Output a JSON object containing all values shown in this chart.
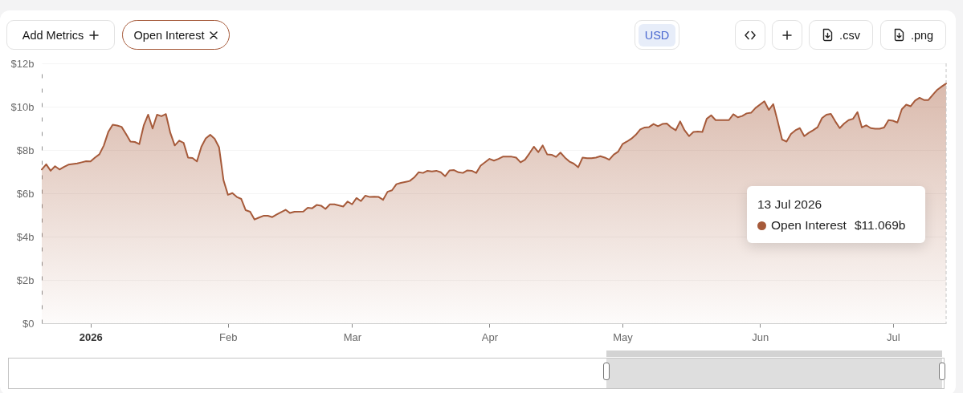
{
  "chart_data": {
    "type": "area",
    "x": [
      "2025-12-21",
      "2025-12-22",
      "2025-12-23",
      "2025-12-24",
      "2025-12-25",
      "2025-12-26",
      "2025-12-27",
      "2025-12-29",
      "2025-12-30",
      "2025-12-31",
      "2026-01-01",
      "2026-01-02",
      "2026-01-03",
      "2026-01-04",
      "2026-01-05",
      "2026-01-06",
      "2026-01-07",
      "2026-01-08",
      "2026-01-09",
      "2026-01-10",
      "2026-01-11",
      "2026-01-12",
      "2026-01-13",
      "2026-01-14",
      "2026-01-15",
      "2026-01-16",
      "2026-01-17",
      "2026-01-18",
      "2026-01-19",
      "2026-01-20",
      "2026-01-21",
      "2026-01-22",
      "2026-01-23",
      "2026-01-24",
      "2026-01-25",
      "2026-01-26",
      "2026-01-27",
      "2026-01-28",
      "2026-01-29",
      "2026-01-30",
      "2026-01-31",
      "2026-02-01",
      "2026-02-02",
      "2026-02-03",
      "2026-02-04",
      "2026-02-05",
      "2026-02-06",
      "2026-02-07",
      "2026-02-08",
      "2026-02-09",
      "2026-02-10",
      "2026-02-11",
      "2026-02-12",
      "2026-02-14",
      "2026-02-15",
      "2026-02-16",
      "2026-02-18",
      "2026-02-19",
      "2026-02-20",
      "2026-02-21",
      "2026-02-22",
      "2026-02-23",
      "2026-02-24",
      "2026-02-25",
      "2026-02-27",
      "2026-02-28",
      "2026-03-01",
      "2026-03-02",
      "2026-03-03",
      "2026-03-04",
      "2026-03-05",
      "2026-03-06",
      "2026-03-07",
      "2026-03-08",
      "2026-03-09",
      "2026-03-10",
      "2026-03-11",
      "2026-03-12",
      "2026-03-14",
      "2026-03-15",
      "2026-03-16",
      "2026-03-17",
      "2026-03-18",
      "2026-03-19",
      "2026-03-20",
      "2026-03-21",
      "2026-03-22",
      "2026-03-23",
      "2026-03-24",
      "2026-03-25",
      "2026-03-26",
      "2026-03-27",
      "2026-03-28",
      "2026-03-29",
      "2026-03-30",
      "2026-04-01",
      "2026-04-02",
      "2026-04-03",
      "2026-04-04",
      "2026-04-06",
      "2026-04-07",
      "2026-04-08",
      "2026-04-09",
      "2026-04-10",
      "2026-04-11",
      "2026-04-12",
      "2026-04-13",
      "2026-04-14",
      "2026-04-15",
      "2026-04-16",
      "2026-04-17",
      "2026-04-18",
      "2026-04-19",
      "2026-04-20",
      "2026-04-21",
      "2026-04-22",
      "2026-04-23",
      "2026-04-24",
      "2026-04-25",
      "2026-04-26",
      "2026-04-27",
      "2026-04-28",
      "2026-04-29",
      "2026-04-30",
      "2026-05-01",
      "2026-05-02",
      "2026-05-03",
      "2026-05-04",
      "2026-05-05",
      "2026-05-06",
      "2026-05-07",
      "2026-05-08",
      "2026-05-09",
      "2026-05-10",
      "2026-05-11",
      "2026-05-12",
      "2026-05-13",
      "2026-05-14",
      "2026-05-15",
      "2026-05-16",
      "2026-05-17",
      "2026-05-18",
      "2026-05-19",
      "2026-05-20",
      "2026-05-21",
      "2026-05-22",
      "2026-05-23",
      "2026-05-24",
      "2026-05-25",
      "2026-05-26",
      "2026-05-27",
      "2026-05-28",
      "2026-05-29",
      "2026-05-30",
      "2026-05-31",
      "2026-06-02",
      "2026-06-03",
      "2026-06-04",
      "2026-06-05",
      "2026-06-06",
      "2026-06-07",
      "2026-06-08",
      "2026-06-09",
      "2026-06-10",
      "2026-06-11",
      "2026-06-12",
      "2026-06-13",
      "2026-06-14",
      "2026-06-15",
      "2026-06-16",
      "2026-06-17",
      "2026-06-18",
      "2026-06-19",
      "2026-06-20",
      "2026-06-21",
      "2026-06-22",
      "2026-06-23",
      "2026-06-24",
      "2026-06-25",
      "2026-06-26",
      "2026-06-27",
      "2026-06-28",
      "2026-06-29",
      "2026-06-30",
      "2026-07-01",
      "2026-07-02",
      "2026-07-03",
      "2026-07-04",
      "2026-07-05",
      "2026-07-06",
      "2026-07-07",
      "2026-07-08",
      "2026-07-09",
      "2026-07-10",
      "2026-07-11",
      "2026-07-12",
      "2026-07-13"
    ],
    "series": [
      {
        "name": "Open Interest",
        "color": "#a65a3a",
        "values": [
          7.1,
          7.34,
          7.04,
          7.25,
          7.1,
          7.22,
          7.32,
          7.38,
          7.43,
          7.48,
          7.47,
          7.65,
          7.8,
          8.21,
          8.83,
          9.17,
          9.13,
          9.07,
          8.74,
          8.39,
          8.37,
          8.27,
          9.13,
          9.63,
          8.99,
          9.63,
          9.56,
          9.66,
          8.79,
          8.21,
          8.43,
          8.33,
          7.65,
          7.63,
          7.47,
          8.15,
          8.54,
          8.7,
          8.52,
          8.12,
          6.6,
          5.93,
          6.01,
          5.83,
          5.74,
          5.22,
          5.15,
          4.79,
          4.88,
          4.96,
          4.96,
          4.9,
          5.02,
          5.24,
          5.09,
          5.15,
          5.16,
          5.33,
          5.31,
          5.46,
          5.43,
          5.28,
          5.49,
          5.49,
          5.39,
          5.62,
          5.49,
          5.78,
          5.64,
          5.89,
          5.83,
          5.84,
          5.83,
          5.7,
          6.07,
          6.14,
          6.42,
          6.48,
          6.57,
          6.73,
          6.97,
          6.94,
          7.04,
          7.01,
          7.04,
          6.97,
          6.79,
          7.06,
          7.07,
          6.97,
          6.94,
          7.06,
          7.04,
          6.94,
          7.28,
          7.59,
          7.51,
          7.59,
          7.69,
          7.69,
          7.65,
          7.43,
          7.55,
          7.84,
          8.15,
          7.9,
          8.21,
          7.8,
          7.78,
          7.68,
          7.88,
          7.65,
          7.47,
          7.37,
          7.2,
          7.65,
          7.62,
          7.62,
          7.65,
          7.71,
          7.65,
          7.55,
          7.78,
          7.92,
          8.27,
          8.39,
          8.52,
          8.7,
          8.95,
          9.04,
          9.06,
          9.2,
          9.1,
          9.2,
          9.22,
          9.04,
          8.91,
          9.32,
          8.91,
          8.64,
          8.83,
          8.85,
          8.83,
          9.44,
          9.6,
          9.38,
          9.38,
          9.38,
          9.38,
          9.65,
          9.51,
          9.57,
          9.69,
          9.72,
          9.94,
          10.25,
          9.85,
          10.12,
          9.32,
          8.48,
          8.39,
          8.74,
          8.91,
          9.01,
          8.64,
          8.79,
          8.91,
          9.05,
          9.47,
          9.63,
          9.67,
          9.32,
          9.01,
          9.22,
          9.38,
          9.44,
          9.75,
          9.04,
          9.14,
          9.01,
          8.98,
          8.98,
          9.04,
          9.38,
          9.35,
          9.27,
          9.88,
          10.09,
          10.02,
          10.28,
          10.41,
          10.31,
          10.31,
          10.55,
          10.78,
          10.93,
          11.069
        ]
      }
    ],
    "xlim": [
      "2025-12-21",
      "2026-07-13"
    ],
    "xticks": [
      {
        "value": "2026-01-01",
        "label": "2026"
      },
      {
        "value": "2026-02-01",
        "label": "Feb"
      },
      {
        "value": "2026-03-01",
        "label": "Mar"
      },
      {
        "value": "2026-04-01",
        "label": "Apr"
      },
      {
        "value": "2026-05-01",
        "label": "May"
      },
      {
        "value": "2026-06-01",
        "label": "Jun"
      },
      {
        "value": "2026-07-01",
        "label": "Jul"
      }
    ],
    "ylim": [
      0,
      12
    ],
    "yticks": [
      {
        "value": 0,
        "label": "$0"
      },
      {
        "value": 2,
        "label": "$2b"
      },
      {
        "value": 4,
        "label": "$4b"
      },
      {
        "value": 6,
        "label": "$6b"
      },
      {
        "value": 8,
        "label": "$8b"
      },
      {
        "value": 10,
        "label": "$10b"
      },
      {
        "value": 12,
        "label": "$12b"
      }
    ],
    "grid": "y",
    "ref_lines": [
      {
        "axis": "x",
        "value": "2026-07-13",
        "color": "#c4c4c4",
        "line_style": "dashed"
      }
    ],
    "annotations": [
      "Add Metrics",
      "USD",
      ".csv",
      ".png",
      "13 Jul 2026",
      "$11.069b"
    ]
  }
}
